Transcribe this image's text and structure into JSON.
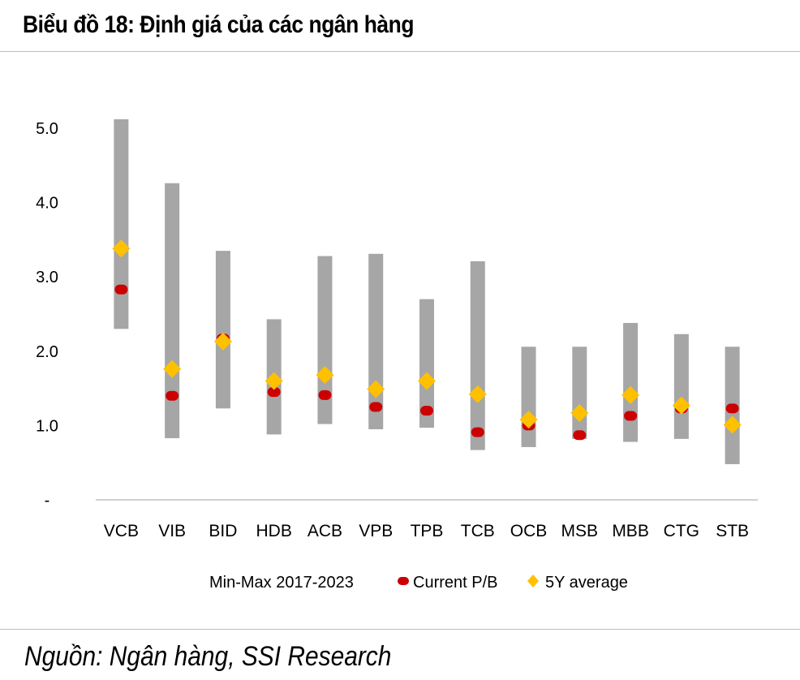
{
  "title": "Biểu đồ 18: Định giá của các ngân hàng",
  "source": "Nguồn: Ngân hàng, SSI Research",
  "colors": {
    "range": "#a6a6a6",
    "current": "#cc0000",
    "average": "#ffc000",
    "axis": "#d0d0d0"
  },
  "chart_data": {
    "type": "range",
    "categories": [
      "VCB",
      "VIB",
      "BID",
      "HDB",
      "ACB",
      "VPB",
      "TPB",
      "TCB",
      "OCB",
      "MSB",
      "MBB",
      "CTG",
      "STB"
    ],
    "yticks": [
      "-",
      "1.0",
      "2.0",
      "3.0",
      "4.0",
      "5.0"
    ],
    "ylim": [
      0,
      5.0
    ],
    "series": [
      {
        "name": "Min-Max 2017-2023",
        "min": [
          2.3,
          0.83,
          1.23,
          0.88,
          1.02,
          0.95,
          0.97,
          0.67,
          0.71,
          0.82,
          0.78,
          0.82,
          0.48
        ],
        "max": [
          5.12,
          4.26,
          3.35,
          2.43,
          3.28,
          3.31,
          2.7,
          3.21,
          2.06,
          2.06,
          2.38,
          2.23,
          2.06
        ]
      },
      {
        "name": "Current P/B",
        "values": [
          2.83,
          1.4,
          2.17,
          1.45,
          1.41,
          1.25,
          1.2,
          0.91,
          1.0,
          0.87,
          1.13,
          1.23,
          1.23
        ]
      },
      {
        "name": "5Y average",
        "values": [
          3.38,
          1.76,
          2.13,
          1.6,
          1.68,
          1.49,
          1.6,
          1.42,
          1.08,
          1.17,
          1.41,
          1.27,
          1.01
        ]
      }
    ],
    "legend_position": "bottom"
  }
}
